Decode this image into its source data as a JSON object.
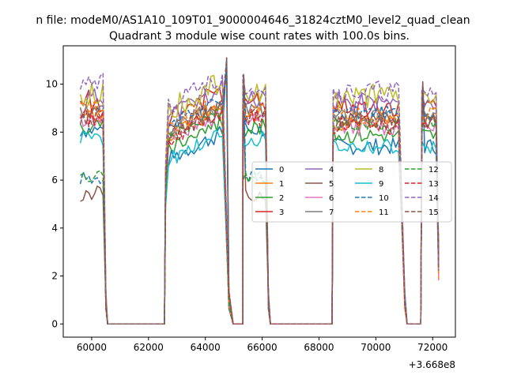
{
  "suptitle": "n file: modeM0/AS1A10_109T01_9000004646_31824cztM0_level2_quad_clean",
  "chart_data": {
    "type": "line",
    "title": "Quadrant 3 module wise count rates with 100.0s bins.",
    "xlabel": "",
    "ylabel": "",
    "x_offset_label": "+3.668e8",
    "xlim": [
      59000,
      72800
    ],
    "ylim": [
      -0.55,
      11.6
    ],
    "xticks": [
      60000,
      62000,
      64000,
      66000,
      68000,
      70000,
      72000
    ],
    "xtick_labels": [
      "60000",
      "62000",
      "64000",
      "66000",
      "68000",
      "70000",
      "72000"
    ],
    "yticks": [
      0,
      2,
      4,
      6,
      8,
      10
    ],
    "ytick_labels": [
      "0",
      "2",
      "4",
      "6",
      "8",
      "10"
    ],
    "grid": false,
    "legend": {
      "placement": "center-right",
      "ncol": 4
    },
    "segments": [
      {
        "start": 59600,
        "end": 60400,
        "dip": 60500,
        "zero_start": 60560,
        "zero_end": 62540
      },
      {
        "start": 62600,
        "end": 64650,
        "dip": 64830,
        "zero_start": 64980,
        "zero_end": 65320
      },
      {
        "start": 65320,
        "end": 66150,
        "dip": 66220,
        "zero_start": 66290,
        "zero_end": 68440
      },
      {
        "start": 68500,
        "end": 70850,
        "dip": 71020,
        "zero_start": 71100,
        "zero_end": 71580
      },
      {
        "start": 71620,
        "end": 72150,
        "dip": null,
        "zero_start": null,
        "zero_end": null
      }
    ],
    "spikes": [
      {
        "x": 64750,
        "y": 11.1
      },
      {
        "x": 65350,
        "y": 10.4
      },
      {
        "x": 71650,
        "y": 10.1
      }
    ],
    "series": [
      {
        "name": "0",
        "color": "#1f77b4",
        "dash": false,
        "level": 8.1,
        "mid_level": 7.4,
        "noise": 0.35
      },
      {
        "name": "1",
        "color": "#ff7f0e",
        "dash": false,
        "level": 8.7,
        "mid_level": 8.4,
        "noise": 0.35
      },
      {
        "name": "2",
        "color": "#2ca02c",
        "dash": false,
        "level": 8.2,
        "mid_level": 7.9,
        "noise": 0.35
      },
      {
        "name": "3",
        "color": "#d62728",
        "dash": false,
        "level": 9.3,
        "mid_level": 9.1,
        "noise": 0.45
      },
      {
        "name": "4",
        "color": "#9467bd",
        "dash": false,
        "level": 9.4,
        "mid_level": 9.2,
        "noise": 0.45
      },
      {
        "name": "5",
        "color": "#8c564b",
        "dash": false,
        "level": 5.4,
        "mid_level": 8.6,
        "noise": 0.35
      },
      {
        "name": "6",
        "color": "#e377c2",
        "dash": false,
        "level": 8.5,
        "mid_level": 8.2,
        "noise": 0.35
      },
      {
        "name": "7",
        "color": "#7f7f7f",
        "dash": false,
        "level": 8.9,
        "mid_level": 8.6,
        "noise": 0.35
      },
      {
        "name": "8",
        "color": "#bcbd22",
        "dash": false,
        "level": 9.6,
        "mid_level": 9.5,
        "noise": 0.5
      },
      {
        "name": "9",
        "color": "#17becf",
        "dash": false,
        "level": 7.7,
        "mid_level": 7.4,
        "noise": 0.35
      },
      {
        "name": "10",
        "color": "#1f77b4",
        "dash": true,
        "level": 6.1,
        "mid_level": 8.8,
        "noise": 0.3
      },
      {
        "name": "11",
        "color": "#ff7f0e",
        "dash": true,
        "level": 8.9,
        "mid_level": 8.7,
        "noise": 0.4
      },
      {
        "name": "12",
        "color": "#2ca02c",
        "dash": true,
        "level": 6.1,
        "mid_level": 8.3,
        "noise": 0.3
      },
      {
        "name": "13",
        "color": "#d62728",
        "dash": true,
        "level": 8.6,
        "mid_level": 8.3,
        "noise": 0.4
      },
      {
        "name": "14",
        "color": "#9467bd",
        "dash": true,
        "level": 10.0,
        "mid_level": 9.7,
        "noise": 0.45
      },
      {
        "name": "15",
        "color": "#8c564b",
        "dash": true,
        "level": 8.7,
        "mid_level": 8.4,
        "noise": 0.4
      }
    ]
  }
}
